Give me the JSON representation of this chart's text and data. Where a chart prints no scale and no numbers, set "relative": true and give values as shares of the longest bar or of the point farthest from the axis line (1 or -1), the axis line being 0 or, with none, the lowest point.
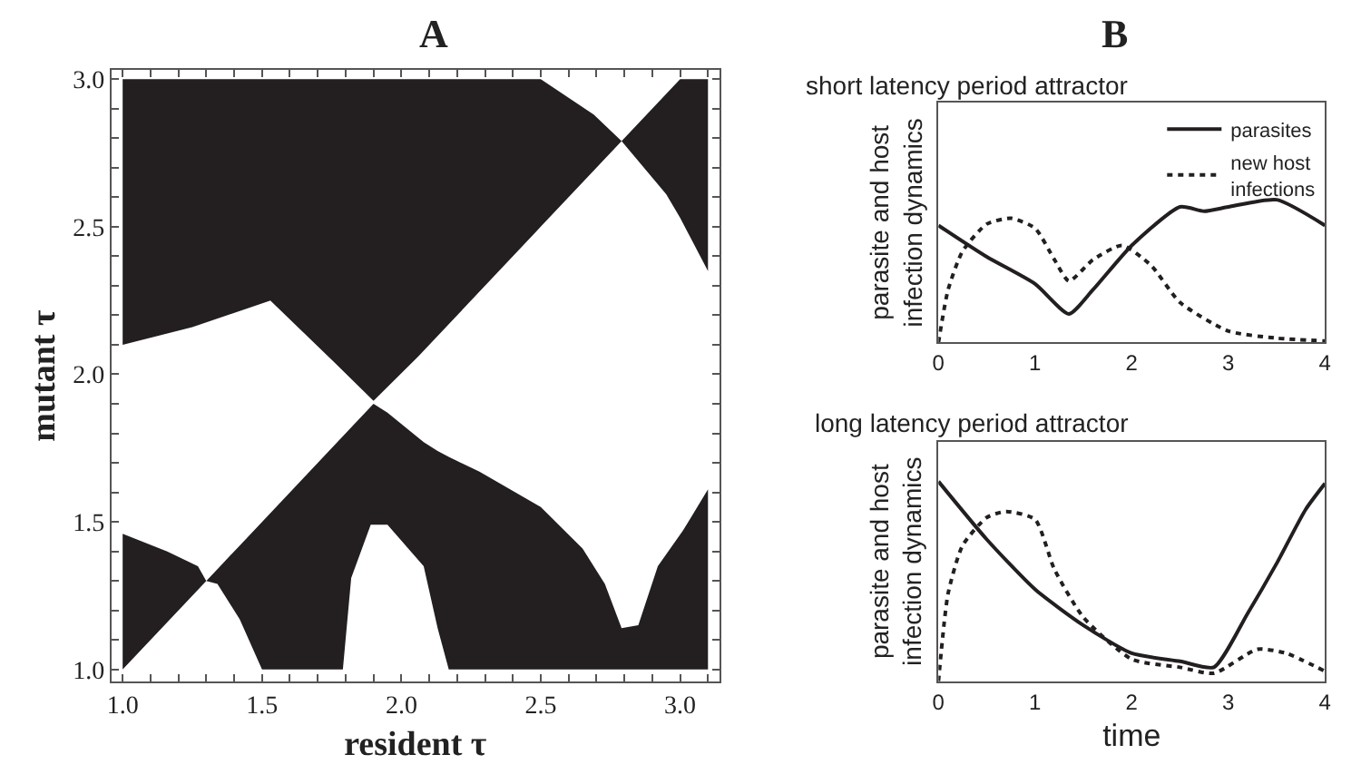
{
  "chart_data": [
    {
      "type": "line",
      "title": "A",
      "xlabel": "resident τ",
      "ylabel": "mutant τ",
      "xlim": [
        0.96,
        3.14
      ],
      "ylim": [
        0.96,
        3.03
      ],
      "xticks": [
        {
          "value": 1,
          "label": "1.0"
        },
        {
          "value": 1.1,
          "label": null
        },
        {
          "value": 1.2,
          "label": null
        },
        {
          "value": 1.3,
          "label": null
        },
        {
          "value": 1.4,
          "label": null
        },
        {
          "value": 1.5,
          "label": "1.5"
        },
        {
          "value": 1.6,
          "label": null
        },
        {
          "value": 1.7,
          "label": null
        },
        {
          "value": 1.8,
          "label": null
        },
        {
          "value": 1.9,
          "label": null
        },
        {
          "value": 2,
          "label": "2.0"
        },
        {
          "value": 2.1,
          "label": null
        },
        {
          "value": 2.2,
          "label": null
        },
        {
          "value": 2.3,
          "label": null
        },
        {
          "value": 2.4,
          "label": null
        },
        {
          "value": 2.5,
          "label": "2.5"
        },
        {
          "value": 2.6,
          "label": null
        },
        {
          "value": 2.7,
          "label": null
        },
        {
          "value": 2.8,
          "label": null
        },
        {
          "value": 2.9,
          "label": null
        },
        {
          "value": 3,
          "label": "3.0"
        },
        {
          "value": 3.1,
          "label": null
        }
      ],
      "yticks": [
        {
          "value": 1,
          "label": "1.0"
        },
        {
          "value": 1.1,
          "label": null
        },
        {
          "value": 1.2,
          "label": null
        },
        {
          "value": 1.3,
          "label": null
        },
        {
          "value": 1.4,
          "label": null
        },
        {
          "value": 1.5,
          "label": "1.5"
        },
        {
          "value": 1.6,
          "label": null
        },
        {
          "value": 1.7,
          "label": null
        },
        {
          "value": 1.8,
          "label": null
        },
        {
          "value": 1.9,
          "label": null
        },
        {
          "value": 2,
          "label": "2.0"
        },
        {
          "value": 2.1,
          "label": null
        },
        {
          "value": 2.2,
          "label": null
        },
        {
          "value": 2.3,
          "label": null
        },
        {
          "value": 2.4,
          "label": null
        },
        {
          "value": 2.5,
          "label": "2.5"
        },
        {
          "value": 2.6,
          "label": null
        },
        {
          "value": 2.7,
          "label": null
        },
        {
          "value": 2.8,
          "label": null
        },
        {
          "value": 2.9,
          "label": null
        },
        {
          "value": 3,
          "label": "3.0"
        }
      ],
      "series": [
        {
          "color": "#231f20",
          "x": [
            1.0,
            1.25,
            1.53,
            1.76,
            1.9,
            2.06,
            2.5,
            2.69,
            2.79
          ],
          "lower": [
            2.1,
            2.16,
            2.25,
            2.04,
            1.91,
            2.06,
            2.5,
            2.69,
            2.79
          ],
          "upper": [
            3.0,
            3.0,
            3.0,
            3.0,
            3.0,
            3.0,
            3.0,
            2.88,
            2.79
          ],
          "values": [
            null,
            null,
            null,
            null,
            null,
            null,
            null,
            null,
            null
          ]
        },
        {
          "color": "#231f20",
          "x": [
            2.79,
            2.95,
            3.0,
            3.1
          ],
          "lower": [
            2.79,
            2.61,
            2.53,
            2.35
          ],
          "upper": [
            2.79,
            2.95,
            3.0,
            3.0
          ],
          "values": [
            null,
            null,
            null,
            null
          ]
        },
        {
          "color": "#231f20",
          "x": [
            1.0,
            1.16,
            1.27,
            1.3
          ],
          "lower": [
            1.0,
            1.16,
            1.27,
            1.3
          ],
          "upper": [
            1.46,
            1.4,
            1.35,
            1.3
          ],
          "values": [
            null,
            null,
            null,
            null
          ]
        },
        {
          "color": "#231f20",
          "x": [
            1.3,
            1.34,
            1.42,
            1.5,
            1.79,
            1.82,
            1.89,
            1.9,
            1.95,
            2.08,
            2.13,
            2.17,
            2.28,
            2.5,
            2.65,
            2.73,
            2.79,
            2.85,
            2.92,
            3.01,
            3.1
          ],
          "lower": [
            1.3,
            1.29,
            1.17,
            1.0,
            1.0,
            1.31,
            1.49,
            1.49,
            1.49,
            1.35,
            1.14,
            1.0,
            1.0,
            1.0,
            1.0,
            1.0,
            1.0,
            1.0,
            1.0,
            1.0,
            1.0
          ],
          "upper": [
            1.3,
            1.34,
            1.42,
            1.5,
            1.79,
            1.82,
            1.89,
            1.9,
            1.87,
            1.77,
            1.74,
            1.72,
            1.67,
            1.55,
            1.41,
            1.29,
            1.14,
            1.15,
            1.35,
            1.47,
            1.61
          ],
          "values": [
            null,
            null,
            null,
            null,
            null,
            null,
            null,
            null,
            null,
            null,
            null,
            null,
            null,
            null,
            null,
            null,
            null,
            null,
            null,
            null,
            null
          ]
        }
      ],
      "legend": false
    },
    {
      "type": "line",
      "title": "B",
      "subtitle": "short latency period attractor",
      "ylabel": "parasite and host infection dynamics",
      "relative": true,
      "xlim": [
        0,
        4
      ],
      "xticks": [
        0,
        1,
        2,
        3,
        4
      ],
      "legend": "top right",
      "series": [
        {
          "name": "parasites",
          "color": "#231f20",
          "line_style": "solid",
          "x": [
            0,
            0.5,
            1,
            1.35,
            1.6,
            2,
            2.5,
            2.75,
            3,
            3.5,
            4
          ],
          "values": [
            0.82,
            0.6,
            0.41,
            0.2,
            0.37,
            0.68,
            0.95,
            0.92,
            0.95,
            1.0,
            0.82
          ]
        },
        {
          "name": "new host infections",
          "color": "#231f20",
          "line_style": "dashed",
          "x": [
            0,
            0.1,
            0.25,
            0.5,
            0.75,
            1,
            1.2,
            1.35,
            1.6,
            1.9,
            2.2,
            2.5,
            3,
            3.5,
            4
          ],
          "values": [
            0,
            0.37,
            0.64,
            0.83,
            0.87,
            0.8,
            0.58,
            0.43,
            0.58,
            0.68,
            0.54,
            0.28,
            0.08,
            0.03,
            0.01
          ]
        }
      ]
    },
    {
      "type": "line",
      "title": "long latency period attractor",
      "xlabel": "time",
      "ylabel": "parasite and host infection dynamics",
      "relative": true,
      "xlim": [
        0,
        4
      ],
      "xticks": [
        0,
        1,
        2,
        3,
        4
      ],
      "legend": false,
      "series": [
        {
          "color": "#231f20",
          "line_style": "solid",
          "x": [
            0,
            0.5,
            1,
            1.5,
            2,
            2.5,
            2.85,
            3.2,
            3.5,
            3.8,
            4
          ],
          "values": [
            1.0,
            0.71,
            0.46,
            0.28,
            0.14,
            0.1,
            0.07,
            0.34,
            0.59,
            0.86,
            0.99
          ]
        },
        {
          "color": "#231f20",
          "line_style": "dashed",
          "x": [
            0,
            0.1,
            0.25,
            0.5,
            0.7,
            1,
            1.2,
            1.5,
            2,
            2.5,
            2.85,
            3.3,
            3.6,
            4
          ],
          "values": [
            0,
            0.44,
            0.68,
            0.82,
            0.85,
            0.81,
            0.56,
            0.32,
            0.11,
            0.07,
            0.04,
            0.16,
            0.14,
            0.05
          ]
        }
      ]
    }
  ]
}
